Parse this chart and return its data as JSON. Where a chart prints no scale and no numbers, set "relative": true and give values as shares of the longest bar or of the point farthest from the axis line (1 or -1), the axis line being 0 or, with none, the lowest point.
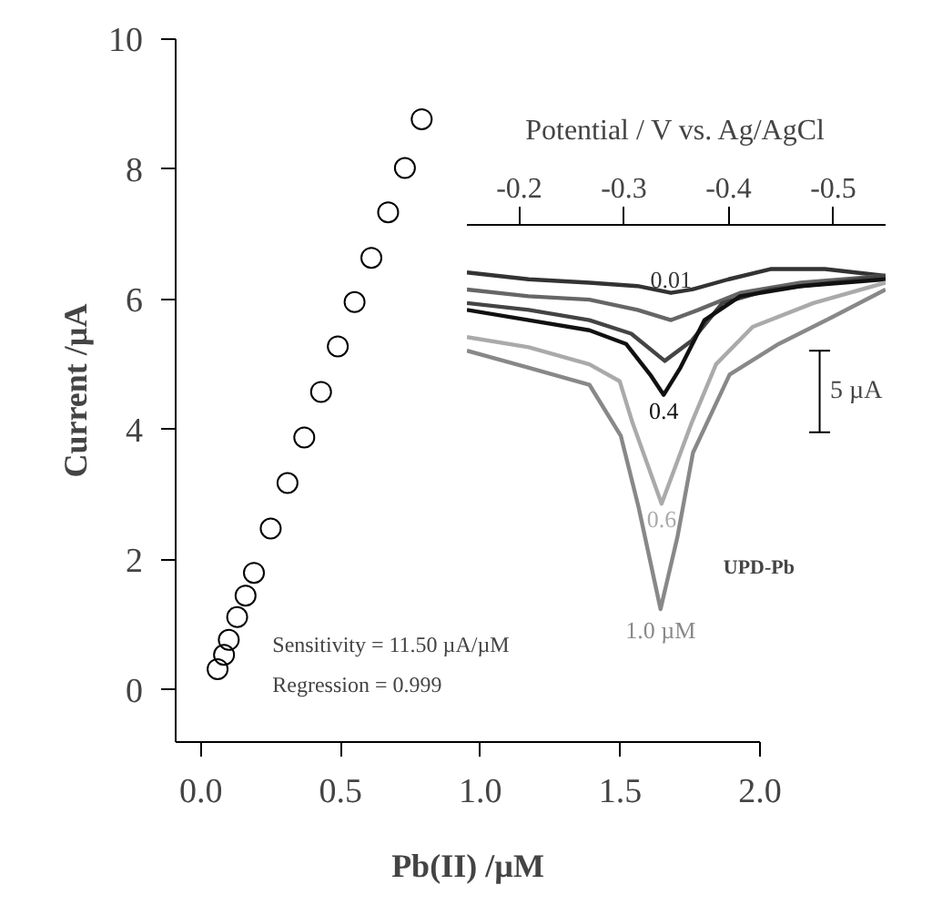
{
  "chart_data": [
    {
      "type": "scatter",
      "xlabel": "Pb(II) /µM",
      "ylabel": "Current /µA",
      "color": "#000000",
      "marker": "circle",
      "x": [
        0.06,
        0.083,
        0.1,
        0.13,
        0.16,
        0.19,
        0.25,
        0.31,
        0.37,
        0.43,
        0.49,
        0.55,
        0.61,
        0.67,
        0.73,
        0.79
      ],
      "values": [
        0.32,
        0.54,
        0.77,
        1.12,
        1.45,
        1.8,
        2.48,
        3.18,
        3.88,
        4.58,
        5.28,
        5.96,
        6.64,
        7.34,
        8.02,
        8.77
      ],
      "xlim": [
        -0.09,
        2.0
      ],
      "ylim": [
        -0.8,
        10
      ],
      "xticks": [
        {
          "value": 0,
          "label": "0.0"
        },
        {
          "value": 0.5,
          "label": "0.5"
        },
        {
          "value": 1,
          "label": "1.0"
        },
        {
          "value": 1.5,
          "label": "1.5"
        },
        {
          "value": 2,
          "label": "2.0"
        }
      ],
      "yticks": [
        0,
        2,
        4,
        6,
        8,
        10
      ],
      "annotations": [
        "Sensitivity = 11.50 µA/µM",
        "Regression = 0.999"
      ]
    },
    {
      "type": "line",
      "relative": true,
      "xlabel": "Potential / V vs. Ag/AgCl",
      "xlim": [
        -0.15,
        -0.55
      ],
      "xticks": [
        -0.2,
        -0.3,
        -0.4,
        -0.5
      ],
      "line_style": "solid",
      "series": [
        {
          "name": "0.01",
          "color": "#333333",
          "x": [
            -0.15,
            -0.209,
            -0.267,
            -0.313,
            -0.345,
            -0.365,
            -0.4,
            -0.44,
            -0.492,
            -0.55
          ],
          "values": [
            0.99,
            0.97,
            0.96,
            0.95,
            0.93,
            0.94,
            0.97,
            1.0,
            1.0,
            0.98
          ]
        },
        {
          "color": "#666666",
          "x": [
            -0.15,
            -0.209,
            -0.267,
            -0.313,
            -0.345,
            -0.371,
            -0.411,
            -0.469,
            -0.55
          ],
          "values": [
            0.94,
            0.92,
            0.91,
            0.88,
            0.85,
            0.88,
            0.93,
            0.96,
            0.98
          ]
        },
        {
          "color": "#444444",
          "x": [
            -0.15,
            -0.209,
            -0.267,
            -0.307,
            -0.339,
            -0.365,
            -0.394,
            -0.44,
            -0.498,
            -0.55
          ],
          "values": [
            0.9,
            0.88,
            0.85,
            0.81,
            0.73,
            0.79,
            0.9,
            0.94,
            0.96,
            0.98
          ]
        },
        {
          "name": "0.4",
          "color": "#111111",
          "x": [
            -0.15,
            -0.209,
            -0.267,
            -0.302,
            -0.325,
            -0.338,
            -0.354,
            -0.377,
            -0.411,
            -0.469,
            -0.55
          ],
          "values": [
            0.88,
            0.85,
            0.82,
            0.78,
            0.69,
            0.63,
            0.71,
            0.85,
            0.92,
            0.95,
            0.97
          ]
        },
        {
          "name": "0.6",
          "color": "#aaaaaa",
          "x": [
            -0.15,
            -0.209,
            -0.267,
            -0.296,
            -0.308,
            -0.336,
            -0.365,
            -0.388,
            -0.423,
            -0.481,
            -0.55
          ],
          "values": [
            0.8,
            0.77,
            0.72,
            0.67,
            0.55,
            0.31,
            0.55,
            0.72,
            0.83,
            0.9,
            0.96
          ]
        },
        {
          "name": "1.0 µM",
          "color": "#888888",
          "x": [
            -0.15,
            -0.209,
            -0.267,
            -0.297,
            -0.314,
            -0.335,
            -0.351,
            -0.366,
            -0.401,
            -0.448,
            -0.5,
            -0.55
          ],
          "values": [
            0.76,
            0.71,
            0.66,
            0.51,
            0.3,
            0,
            0.21,
            0.46,
            0.69,
            0.78,
            0.86,
            0.94
          ]
        }
      ],
      "annotations": [
        "5 µA",
        "UPD-Pb"
      ]
    }
  ]
}
